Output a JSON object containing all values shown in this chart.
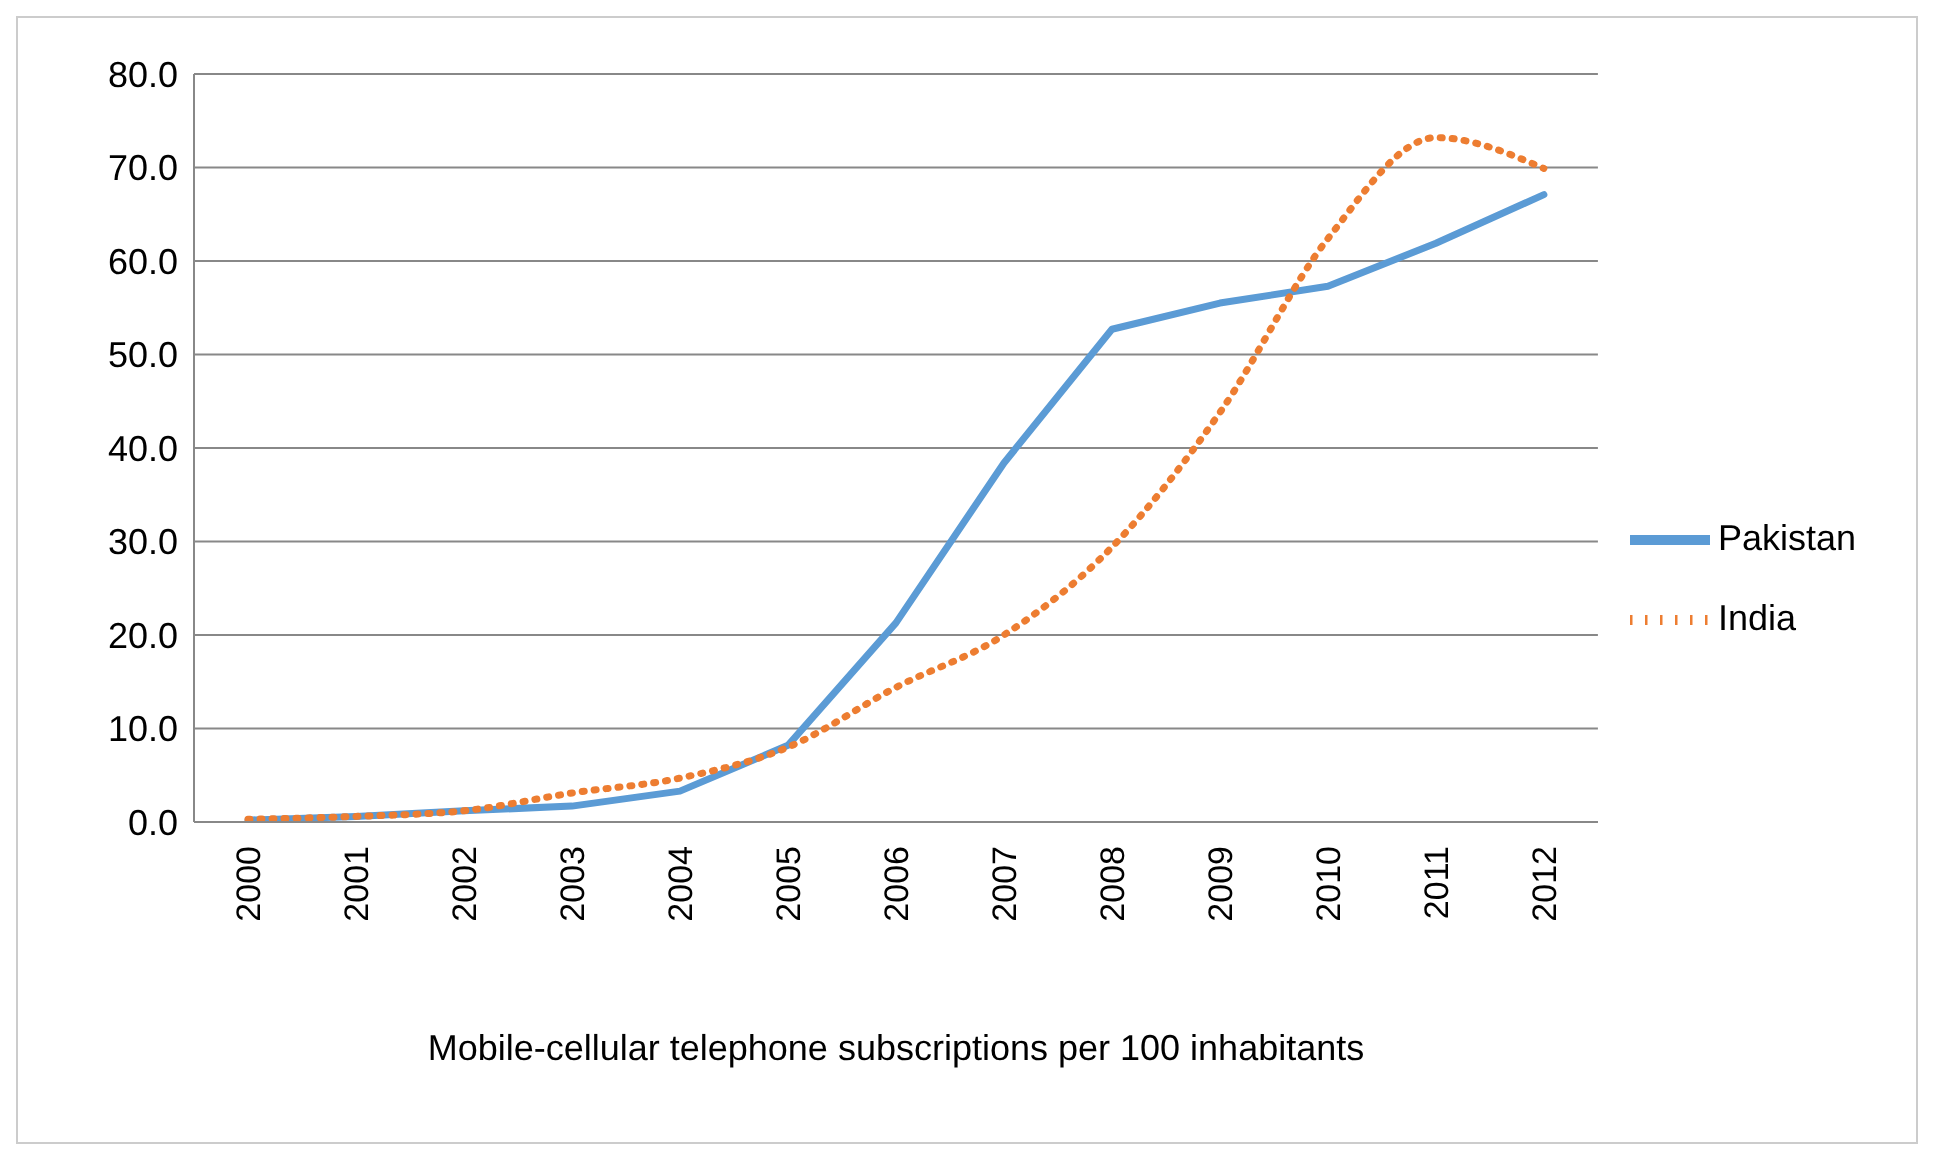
{
  "chart_data": {
    "type": "line",
    "xlabel": "Mobile-cellular telephone subscriptions per 100 inhabitants",
    "categories": [
      "2000",
      "2001",
      "2002",
      "2003",
      "2004",
      "2005",
      "2006",
      "2007",
      "2008",
      "2009",
      "2010",
      "2011",
      "2012"
    ],
    "series": [
      {
        "name": "Pakistan",
        "color": "#5b9bd5",
        "line_style": "solid",
        "values": [
          0.2,
          0.6,
          1.2,
          1.7,
          3.3,
          8.2,
          21.3,
          38.4,
          52.7,
          55.5,
          57.3,
          61.9,
          67.1
        ]
      },
      {
        "name": "India",
        "color": "#ed7d31",
        "line_style": "dotted",
        "values": [
          0.3,
          0.6,
          1.2,
          3.1,
          4.7,
          8.0,
          14.4,
          20.0,
          29.4,
          43.8,
          62.4,
          73.2,
          69.9
        ]
      }
    ],
    "ylim": [
      0,
      80
    ],
    "yticks": [
      {
        "value": 0,
        "label": "0.0"
      },
      {
        "value": 10,
        "label": "10.0"
      },
      {
        "value": 20,
        "label": "20.0"
      },
      {
        "value": 30,
        "label": "30.0"
      },
      {
        "value": 40,
        "label": "40.0"
      },
      {
        "value": 50,
        "label": "50.0"
      },
      {
        "value": 60,
        "label": "60.0"
      },
      {
        "value": 70,
        "label": "70.0"
      },
      {
        "value": 80,
        "label": "80.0"
      }
    ],
    "grid": "y",
    "legend": "right",
    "marker": "none"
  }
}
